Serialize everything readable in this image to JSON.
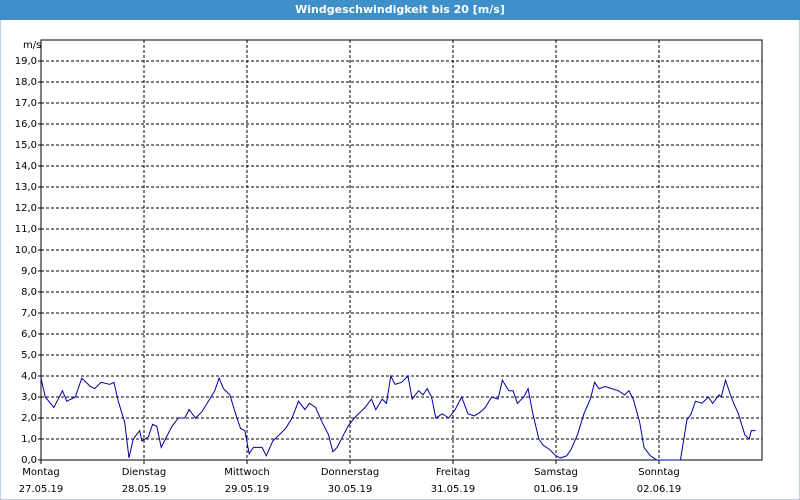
{
  "chart_data": {
    "type": "line",
    "title": "Windgeschwindigkeit bis 20 [m/s]",
    "y_label": "m/s",
    "xlim": [
      0,
      168
    ],
    "xticks": [
      {
        "value": 0,
        "label": "Montag"
      },
      {
        "value": 24,
        "label": "Dienstag"
      },
      {
        "value": 48,
        "label": "Mittwoch"
      },
      {
        "value": 72,
        "label": "Donnerstag"
      },
      {
        "value": 96,
        "label": "Freitag"
      },
      {
        "value": 120,
        "label": "Samstag"
      },
      {
        "value": 144,
        "label": "Sonntag"
      }
    ],
    "xtick_dates": [
      "27.05.19",
      "28.05.19",
      "29.05.19",
      "30.05.19",
      "31.05.19",
      "01.06.19",
      "02.06.19"
    ],
    "ylim": [
      0,
      20
    ],
    "yticks": [
      {
        "value": 0,
        "label": "0,0"
      },
      {
        "value": 1,
        "label": "1,0"
      },
      {
        "value": 2,
        "label": "2,0"
      },
      {
        "value": 3,
        "label": "3,0"
      },
      {
        "value": 4,
        "label": "4,0"
      },
      {
        "value": 5,
        "label": "5,0"
      },
      {
        "value": 6,
        "label": "6,0"
      },
      {
        "value": 7,
        "label": "7,0"
      },
      {
        "value": 8,
        "label": "8,0"
      },
      {
        "value": 9,
        "label": "9,0"
      },
      {
        "value": 10,
        "label": "10,0"
      },
      {
        "value": 11,
        "label": "11,0"
      },
      {
        "value": 12,
        "label": "12,0"
      },
      {
        "value": 13,
        "label": "13,0"
      },
      {
        "value": 14,
        "label": "14,0"
      },
      {
        "value": 15,
        "label": "15,0"
      },
      {
        "value": 16,
        "label": "16,0"
      },
      {
        "value": 17,
        "label": "17,0"
      },
      {
        "value": 18,
        "label": "18,0"
      },
      {
        "value": 19,
        "label": "19,0"
      }
    ],
    "grid": true,
    "color": "#0000a0",
    "x": [
      0,
      1,
      3,
      5,
      6,
      8,
      9.5,
      11.5,
      12.5,
      14,
      16,
      17,
      18,
      19.5,
      20.5,
      21.5,
      23,
      23.5,
      25,
      26,
      27,
      28,
      29,
      30.5,
      32,
      33.5,
      34.5,
      36,
      37.5,
      39,
      40.5,
      41.5,
      42.5,
      44,
      45.5,
      46.5,
      47.5,
      48.5,
      49.5,
      51.5,
      52.5,
      54,
      55.5,
      57,
      58.5,
      60,
      61.5,
      62.5,
      64,
      65.5,
      67,
      68,
      69,
      70.5,
      71.5,
      73,
      74.5,
      75.5,
      77,
      78,
      79.5,
      80.5,
      81.5,
      82.5,
      84,
      85.5,
      86.5,
      88,
      89,
      90,
      91,
      92,
      93.5,
      95,
      96.5,
      98,
      99.5,
      101,
      102.5,
      103.5,
      105,
      106.5,
      107.5,
      109,
      110,
      111,
      112.5,
      113.5,
      114.5,
      116,
      117,
      118.5,
      120,
      121,
      122.5,
      123.5,
      125,
      126.5,
      128,
      129,
      130,
      131.5,
      133,
      134.5,
      136,
      137,
      138,
      139.5,
      140.5,
      142,
      143.5,
      145,
      146,
      147.5,
      149,
      150.5,
      151.5,
      152.5,
      154,
      155.5,
      156.5,
      158,
      158.5,
      159.5,
      161,
      162.5,
      164,
      165,
      165.5,
      166.5
    ],
    "values": [
      3.9,
      3.0,
      2.5,
      3.3,
      2.8,
      3.0,
      3.9,
      3.5,
      3.4,
      3.7,
      3.6,
      3.7,
      2.8,
      1.8,
      0.1,
      1.0,
      1.4,
      0.9,
      1.1,
      1.7,
      1.6,
      0.6,
      1.0,
      1.6,
      2.0,
      2.0,
      2.4,
      2.0,
      2.3,
      2.8,
      3.3,
      3.9,
      3.4,
      3.1,
      2.1,
      1.5,
      1.4,
      0.3,
      0.6,
      0.6,
      0.2,
      0.9,
      1.2,
      1.5,
      2.0,
      2.8,
      2.4,
      2.7,
      2.5,
      1.8,
      1.2,
      0.4,
      0.6,
      1.2,
      1.6,
      2.0,
      2.3,
      2.5,
      2.9,
      2.4,
      2.9,
      2.7,
      4.0,
      3.6,
      3.7,
      4.0,
      2.9,
      3.3,
      3.1,
      3.4,
      3.0,
      2.0,
      2.2,
      2.0,
      2.4,
      3.0,
      2.2,
      2.1,
      2.3,
      2.5,
      3.0,
      2.9,
      3.8,
      3.3,
      3.3,
      2.7,
      3.0,
      3.4,
      2.3,
      1.0,
      0.7,
      0.5,
      0.2,
      0.1,
      0.2,
      0.5,
      1.2,
      2.2,
      2.9,
      3.7,
      3.4,
      3.5,
      3.4,
      3.3,
      3.1,
      3.3,
      2.9,
      1.8,
      0.6,
      0.2,
      0.0,
      0.0,
      0.0,
      0.0,
      0.0,
      1.9,
      2.2,
      2.8,
      2.7,
      3.0,
      2.7,
      3.1,
      3.0,
      3.8,
      2.9,
      2.2,
      1.2,
      1.0,
      1.4,
      1.4
    ]
  }
}
